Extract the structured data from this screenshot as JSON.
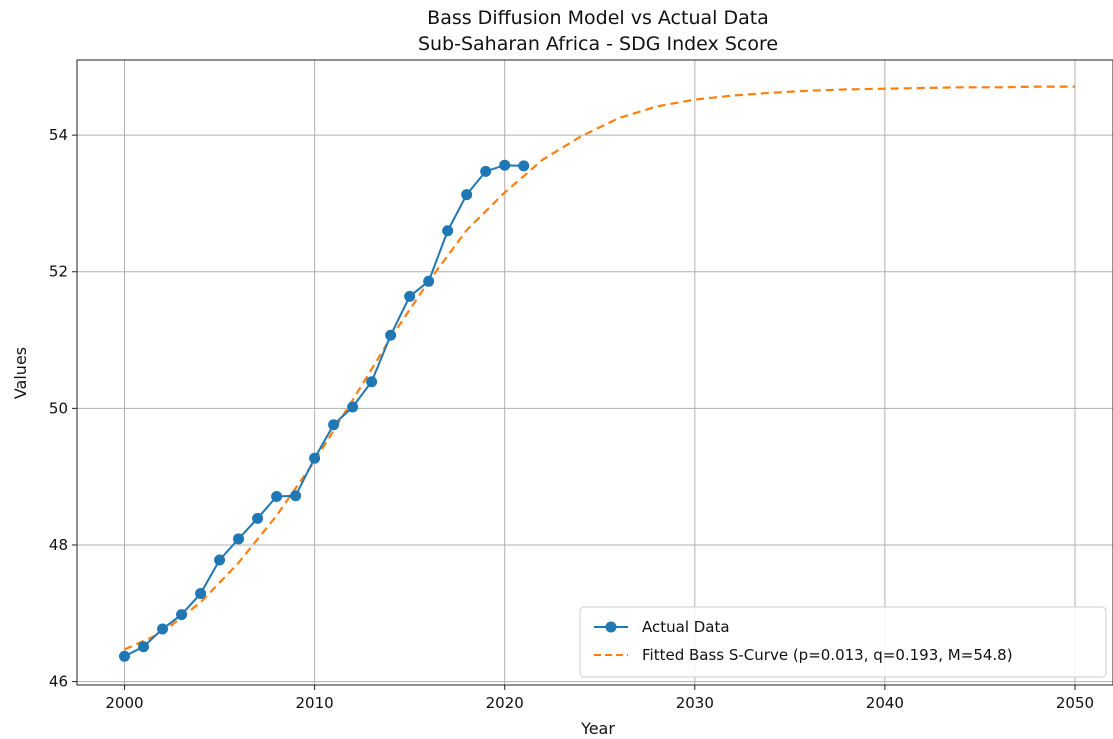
{
  "chart_data": {
    "type": "line",
    "title": "Bass Diffusion Model vs Actual Data",
    "subtitle": "Sub-Saharan Africa - SDG Index Score",
    "xlabel": "Year",
    "ylabel": "Values",
    "xlim": [
      1997.5,
      2052
    ],
    "ylim": [
      45.95,
      55.1
    ],
    "xticks": [
      "2000",
      "2010",
      "2020",
      "2030",
      "2040",
      "2050"
    ],
    "yticks": [
      "46",
      "48",
      "50",
      "52",
      "54"
    ],
    "grid": true,
    "legend_position": "bottom-right",
    "colors": {
      "actual": "#1f77b4",
      "fitted": "#ff7f0e",
      "grid": "#b0b0b0"
    },
    "series": [
      {
        "name": "Actual Data",
        "style": "solid-marker",
        "x": [
          2000,
          2001,
          2002,
          2003,
          2004,
          2005,
          2006,
          2007,
          2008,
          2009,
          2010,
          2011,
          2012,
          2013,
          2014,
          2015,
          2016,
          2017,
          2018,
          2019,
          2020,
          2021
        ],
        "y": [
          46.37,
          46.51,
          46.77,
          46.98,
          47.29,
          47.78,
          48.09,
          48.39,
          48.71,
          48.72,
          49.27,
          49.76,
          50.02,
          50.39,
          51.07,
          51.64,
          51.86,
          52.6,
          53.13,
          53.47,
          53.56,
          53.55
        ]
      },
      {
        "name": "Fitted Bass S-Curve (p=0.013, q=0.193, M=54.8)",
        "style": "dashed",
        "x": [
          2000,
          2002,
          2004,
          2006,
          2008,
          2010,
          2012,
          2014,
          2016,
          2018,
          2020,
          2022,
          2024,
          2026,
          2028,
          2030,
          2032,
          2034,
          2036,
          2038,
          2040,
          2042,
          2044,
          2046,
          2048,
          2050
        ],
        "y": [
          46.47,
          46.72,
          47.16,
          47.74,
          48.43,
          49.23,
          50.12,
          51.03,
          51.86,
          52.61,
          53.16,
          53.64,
          53.98,
          54.25,
          54.42,
          54.52,
          54.58,
          54.62,
          54.65,
          54.67,
          54.68,
          54.69,
          54.7,
          54.7,
          54.71,
          54.71
        ]
      }
    ]
  }
}
